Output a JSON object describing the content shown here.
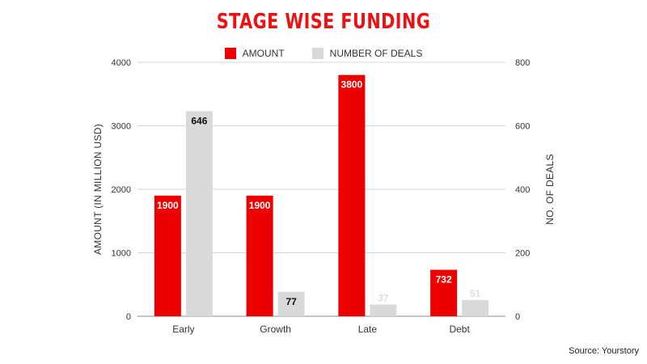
{
  "chart_data": {
    "type": "bar",
    "title": "STAGE WISE FUNDING",
    "categories": [
      "Early",
      "Growth",
      "Late",
      "Debt"
    ],
    "series": [
      {
        "name": "AMOUNT",
        "values": [
          1900,
          1900,
          3800,
          732
        ],
        "axis": "left",
        "color": "#ee0000",
        "label_color": "#ffffff"
      },
      {
        "name": "NUMBER OF DEALS",
        "values": [
          646,
          77,
          37,
          51
        ],
        "axis": "right",
        "color": "#d9d9d9",
        "label_color": "#111111"
      }
    ],
    "ylabel": "AMOUNT (IN MILLION USD)",
    "y2label": "NO. OF DEALS",
    "ylim": [
      0,
      4000
    ],
    "y2lim": [
      0,
      800
    ],
    "yticks": [
      0,
      1000,
      2000,
      3000,
      4000
    ],
    "y2ticks": [
      0,
      200,
      400,
      600,
      800
    ],
    "grid": true,
    "legend_position": "top"
  },
  "source": "Source: Yourstory",
  "colors": {
    "title": "#ee1111",
    "amount": "#ee0000",
    "deals": "#d9d9d9",
    "grid": "#d6d6d6"
  }
}
